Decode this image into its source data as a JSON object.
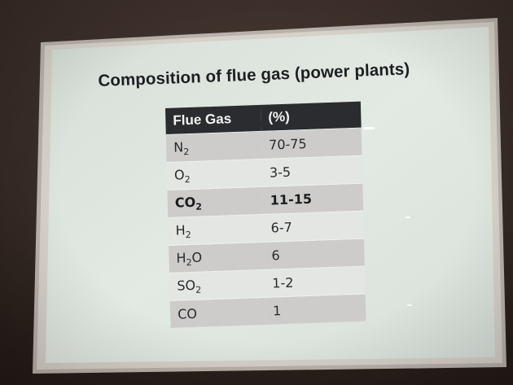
{
  "slide": {
    "title": "Composition of flue gas (power plants)"
  },
  "table": {
    "headers": [
      "Flue Gas",
      "(%)"
    ],
    "rows": [
      {
        "base": "N",
        "sub": "2",
        "after": "",
        "value": "70-75",
        "bold": false
      },
      {
        "base": "O",
        "sub": "2",
        "after": "",
        "value": "3-5",
        "bold": false
      },
      {
        "base": "CO",
        "sub": "2",
        "after": "",
        "value": "11-15",
        "bold": true
      },
      {
        "base": "H",
        "sub": "2",
        "after": "",
        "value": "6-7",
        "bold": false
      },
      {
        "base": "H",
        "sub": "2",
        "after": "O",
        "value": "6",
        "bold": false
      },
      {
        "base": "SO",
        "sub": "2",
        "after": "",
        "value": "1-2",
        "bold": false
      },
      {
        "base": "CO",
        "sub": "",
        "after": "",
        "value": "1",
        "bold": false
      }
    ]
  },
  "colors": {
    "screen_background": "#dfe6e0",
    "header_background": "#2b2c2f",
    "row_dark": "#cdcccb",
    "row_light": "#e4e6e3",
    "frame": "#c9c3bb",
    "wall": "#3e302a"
  }
}
